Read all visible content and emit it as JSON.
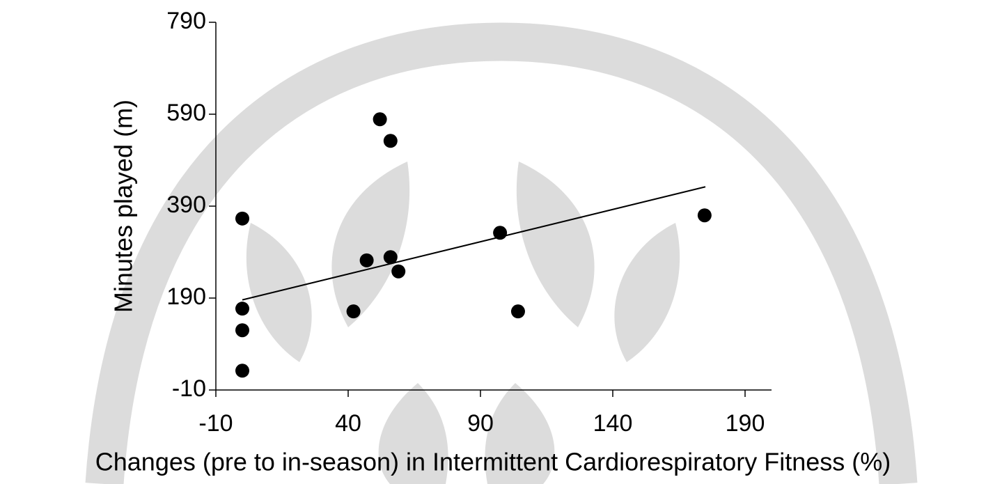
{
  "chart_data": {
    "type": "scatter",
    "x_label": "Changes (pre to in-season) in Intermittent Cardiorespiratory Fitness (%)",
    "y_label": "Minutes played (m)",
    "xlim": [
      -10,
      200
    ],
    "xticks": [
      -10,
      40,
      90,
      140,
      190
    ],
    "ylim": [
      -10,
      790
    ],
    "yticks": [
      -10,
      190,
      390,
      590,
      790
    ],
    "color": "#000000",
    "x": [
      0,
      0,
      0,
      0,
      52,
      56,
      47,
      56,
      59,
      42,
      97.4,
      104.2,
      174.7
    ],
    "values": [
      363,
      167,
      120,
      32,
      579,
      532,
      272,
      279,
      248,
      161,
      332,
      161,
      370
    ],
    "trendline": {
      "x": [
        0,
        175
      ],
      "values": [
        186,
        432
      ]
    }
  }
}
